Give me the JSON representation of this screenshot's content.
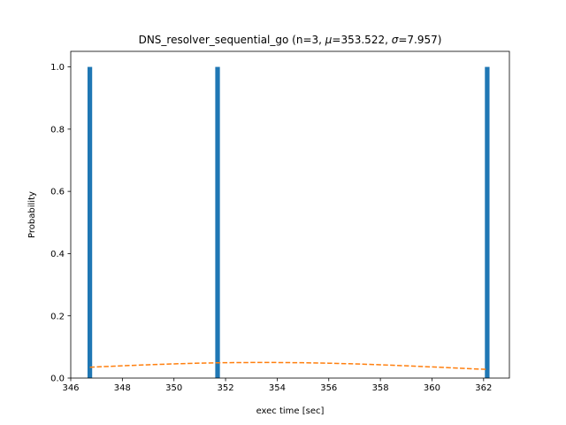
{
  "chart_data": {
    "type": "bar",
    "title_main": "DNS_resolver_sequential_go (n=3, ",
    "title_mu_symbol": "μ",
    "title_mu_value": "=353.522, ",
    "title_sigma_symbol": "σ",
    "title_sigma_value": "=7.957)",
    "xlabel": "exec time [sec]",
    "ylabel": "Probability",
    "xlim": [
      346.0,
      363.0
    ],
    "ylim": [
      0.0,
      1.05
    ],
    "xticks": [
      346,
      348,
      350,
      352,
      354,
      356,
      358,
      360,
      362
    ],
    "yticks": [
      0.0,
      0.2,
      0.4,
      0.6,
      0.8,
      1.0
    ],
    "xtick_labels": [
      "346",
      "348",
      "350",
      "352",
      "354",
      "356",
      "358",
      "360",
      "362"
    ],
    "ytick_labels": [
      "0.0",
      "0.2",
      "0.4",
      "0.6",
      "0.8",
      "1.0"
    ],
    "bars": [
      {
        "x": 346.74,
        "value": 1.0
      },
      {
        "x": 351.69,
        "value": 1.0
      },
      {
        "x": 362.14,
        "value": 1.0
      }
    ],
    "bar_width": 0.18,
    "fit_curve": {
      "style": "dashed",
      "x": [
        346.74,
        348,
        349,
        350,
        351,
        352,
        353,
        353.522,
        354,
        355,
        356,
        357,
        358,
        359,
        360,
        361,
        362.14
      ],
      "y": [
        0.0348,
        0.0395,
        0.0428,
        0.0457,
        0.048,
        0.0495,
        0.05,
        0.0501,
        0.05,
        0.0493,
        0.0478,
        0.0456,
        0.0428,
        0.0394,
        0.0358,
        0.0319,
        0.0278
      ]
    },
    "grid": false,
    "colors": {
      "bars": "#1f77b4",
      "fit_curve": "#ff7f0e",
      "axes": "#000000",
      "background": "#ffffff"
    }
  }
}
